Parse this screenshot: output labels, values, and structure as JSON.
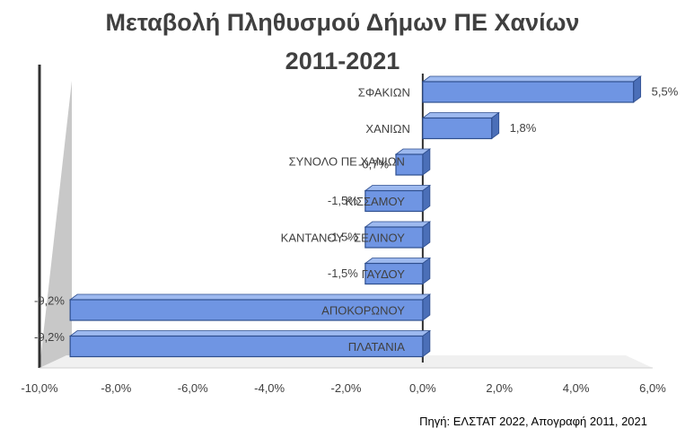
{
  "title_line1": "Μεταβολή Πληθυσμού Δήμων ΠΕ Χανίων",
  "title_line2": "2011-2021",
  "source": "Πηγή: ΕΛΣΤΑΤ 2022, Απογραφή 2011, 2021",
  "colors": {
    "bar": "#6f95e3",
    "bar_edge": "#2f4f8f",
    "bar_top": "#9db9ef",
    "axis": "#303030"
  },
  "chart_data": {
    "type": "bar",
    "orientation": "horizontal",
    "categories": [
      "ΣΦΑΚΙΩΝ",
      "ΧΑΝΙΩΝ",
      "ΣΥΝΟΛΟ ΠΕ ΧΑΝΙΩΝ",
      "ΚΙΣΣΑΜΟΥ",
      "ΚΑΝΤΑΝΟΥ - ΣΕΛΙΝΟΥ",
      "ΓΑΥΔΟΥ",
      "ΑΠΟΚΟΡΩΝΟΥ",
      "ΠΛΑΤΑΝΙΑ"
    ],
    "values": [
      5.5,
      1.8,
      -0.7,
      -1.5,
      -1.5,
      -1.5,
      -9.2,
      -9.2
    ],
    "value_labels": [
      "5,5%",
      "1,8%",
      "-0,7%",
      "-1,5%",
      "-1,5%",
      "-1,5%",
      "-9,2%",
      "-9,2%"
    ],
    "xlim": [
      -10,
      6
    ],
    "xticks": [
      -10,
      -8,
      -6,
      -4,
      -2,
      0,
      2,
      4,
      6
    ],
    "xtick_labels": [
      "-10,0%",
      "-8,0%",
      "-6,0%",
      "-4,0%",
      "-2,0%",
      "0,0%",
      "2,0%",
      "4,0%",
      "6,0%"
    ],
    "title": "Μεταβολή Πληθυσμού Δήμων ΠΕ Χανίων 2011-2021",
    "xlabel": "",
    "ylabel": "",
    "grid": false,
    "legend": "none"
  }
}
